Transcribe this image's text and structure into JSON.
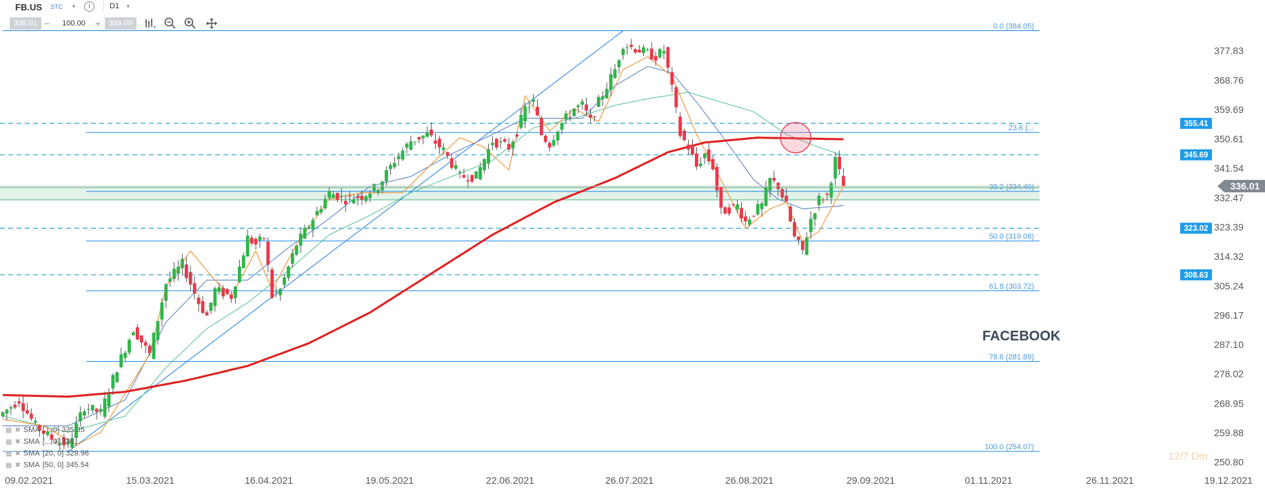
{
  "toolbar": {
    "symbol": "FB.US",
    "market": "STC",
    "timeframe": "D1",
    "bid": "336.01",
    "volume": "100.00",
    "ask": "336.09"
  },
  "chart_label": "FACEBOOK",
  "watermark": "12/7 Dm",
  "indicators": [
    {
      "label": "SMA",
      "value": "[... 0] 335.35"
    },
    {
      "label": "SMA",
      "value": "[... 0] 336..."
    },
    {
      "label": "SMA",
      "value": "[20, 0] 329.96"
    },
    {
      "label": "SMA",
      "value": "[50, 0] 345.54"
    }
  ],
  "colors": {
    "up": "#2fb54a",
    "down": "#e8394a",
    "sma_fast": "#f0a04b",
    "sma_20": "#6b8fc9",
    "sma_50": "#6ccaa0",
    "sma_200": "#e02020",
    "fib": "#1e88e5",
    "current_price": "#808890"
  },
  "chart_data": {
    "type": "candlestick",
    "symbol": "FB.US",
    "timeframe": "D1",
    "title": "",
    "xlabel": "",
    "ylabel": "",
    "ylim": [
      249,
      385
    ],
    "y_ticks": [
      "377.83",
      "368.76",
      "359.69",
      "350.61",
      "341.54",
      "332.47",
      "323.39",
      "314.32",
      "305.24",
      "296.17",
      "287.10",
      "278.02",
      "268.95",
      "259.88",
      "250.80"
    ],
    "x_ticks": [
      "09.02.2021",
      "15.03.2021",
      "16.04.2021",
      "19.05.2021",
      "22.06.2021",
      "26.07.2021",
      "26.08.2021",
      "29.09.2021",
      "01.11.2021",
      "26.11.2021",
      "19.12.2021"
    ],
    "grid": false,
    "current_price": {
      "value": 336.01,
      "label": "336.01"
    },
    "fibonacci": [
      {
        "level": "0.0",
        "price": 384.05,
        "label": "0.0 (384.05)"
      },
      {
        "level": "23.6",
        "price": 352.6,
        "label": "23.6 (..."
      },
      {
        "level": "38.2",
        "price": 334.4,
        "label": "38.2 (334.40)"
      },
      {
        "level": "50.0",
        "price": 319.08,
        "label": "50.0 (319.08)"
      },
      {
        "level": "61.8",
        "price": 303.72,
        "label": "61.8 (303.72)"
      },
      {
        "level": "78.6",
        "price": 281.89,
        "label": "78.6 (281.89)"
      },
      {
        "level": "100.0",
        "price": 254.07,
        "label": "100.0 (254.07)"
      }
    ],
    "price_levels": [
      {
        "price": 355.41,
        "label": "355.41"
      },
      {
        "price": 345.69,
        "label": "345.69"
      },
      {
        "price": 323.02,
        "label": "323.02"
      },
      {
        "price": 308.63,
        "label": "308.63"
      }
    ],
    "support_zone": [
      331.8,
      335.6
    ],
    "annotation_circle": {
      "x_index": 198,
      "price": 351
    },
    "trend_line": {
      "from": {
        "x_index": 16,
        "price": 254.0
      },
      "to": {
        "x_index": 152,
        "price": 384.0
      }
    },
    "sma_200_anchors": [
      [
        0,
        271.5
      ],
      [
        16,
        271.0
      ],
      [
        30,
        272.5
      ],
      [
        45,
        276.0
      ],
      [
        60,
        280.5
      ],
      [
        75,
        287.5
      ],
      [
        90,
        297.0
      ],
      [
        105,
        309.0
      ],
      [
        120,
        321.0
      ],
      [
        135,
        331.0
      ],
      [
        150,
        338.5
      ],
      [
        163,
        346.5
      ],
      [
        172,
        349.5
      ],
      [
        185,
        351.0
      ],
      [
        206,
        350.5
      ]
    ],
    "series_anchors": {
      "sma_fast": [
        [
          0,
          264
        ],
        [
          10,
          262
        ],
        [
          18,
          256
        ],
        [
          24,
          260
        ],
        [
          30,
          272
        ],
        [
          36,
          284
        ],
        [
          40,
          305
        ],
        [
          46,
          316
        ],
        [
          52,
          307
        ],
        [
          56,
          302
        ],
        [
          62,
          316
        ],
        [
          66,
          304
        ],
        [
          72,
          318
        ],
        [
          80,
          332
        ],
        [
          88,
          334
        ],
        [
          98,
          334
        ],
        [
          106,
          344
        ],
        [
          112,
          351
        ],
        [
          118,
          348
        ],
        [
          124,
          341
        ],
        [
          128,
          364
        ],
        [
          134,
          353
        ],
        [
          140,
          360
        ],
        [
          146,
          356
        ],
        [
          152,
          372
        ],
        [
          158,
          376
        ],
        [
          164,
          370
        ],
        [
          170,
          352
        ],
        [
          176,
          338
        ],
        [
          182,
          323
        ],
        [
          188,
          329
        ],
        [
          192,
          331
        ],
        [
          196,
          319
        ],
        [
          200,
          322
        ],
        [
          206,
          336
        ]
      ],
      "sma_20": [
        [
          0,
          262
        ],
        [
          16,
          262
        ],
        [
          30,
          270
        ],
        [
          40,
          294
        ],
        [
          50,
          307
        ],
        [
          60,
          307
        ],
        [
          70,
          317
        ],
        [
          80,
          326
        ],
        [
          90,
          336
        ],
        [
          100,
          339
        ],
        [
          110,
          346
        ],
        [
          120,
          352
        ],
        [
          128,
          357
        ],
        [
          136,
          357
        ],
        [
          142,
          357
        ],
        [
          150,
          367
        ],
        [
          158,
          373
        ],
        [
          164,
          371
        ],
        [
          170,
          362
        ],
        [
          176,
          352
        ],
        [
          184,
          338
        ],
        [
          190,
          332
        ],
        [
          196,
          329
        ],
        [
          206,
          330
        ]
      ],
      "sma_50": [
        [
          0,
          265
        ],
        [
          16,
          260
        ],
        [
          30,
          265
        ],
        [
          40,
          280
        ],
        [
          50,
          292
        ],
        [
          60,
          300
        ],
        [
          70,
          310
        ],
        [
          80,
          321
        ],
        [
          90,
          327
        ],
        [
          100,
          334
        ],
        [
          110,
          339
        ],
        [
          120,
          344
        ],
        [
          130,
          354
        ],
        [
          140,
          357
        ],
        [
          150,
          361
        ],
        [
          158,
          363
        ],
        [
          168,
          365
        ],
        [
          176,
          362
        ],
        [
          184,
          359
        ],
        [
          192,
          352
        ],
        [
          200,
          348
        ],
        [
          206,
          345.5
        ]
      ]
    },
    "candles_anchors": [
      [
        0,
        266
      ],
      [
        4,
        270
      ],
      [
        8,
        262
      ],
      [
        12,
        258
      ],
      [
        16,
        256
      ],
      [
        20,
        268
      ],
      [
        24,
        266
      ],
      [
        28,
        280
      ],
      [
        32,
        292
      ],
      [
        36,
        284
      ],
      [
        40,
        306
      ],
      [
        44,
        312
      ],
      [
        48,
        300
      ],
      [
        50,
        296
      ],
      [
        52,
        304
      ],
      [
        56,
        302
      ],
      [
        60,
        320
      ],
      [
        62,
        318
      ],
      [
        64,
        320
      ],
      [
        66,
        302
      ],
      [
        68,
        304
      ],
      [
        72,
        318
      ],
      [
        76,
        326
      ],
      [
        80,
        334
      ],
      [
        84,
        332
      ],
      [
        88,
        333
      ],
      [
        92,
        336
      ],
      [
        96,
        344
      ],
      [
        100,
        350
      ],
      [
        104,
        352
      ],
      [
        108,
        347
      ],
      [
        112,
        339
      ],
      [
        116,
        339
      ],
      [
        120,
        350
      ],
      [
        124,
        348
      ],
      [
        126,
        353
      ],
      [
        128,
        360
      ],
      [
        130,
        362
      ],
      [
        132,
        352
      ],
      [
        134,
        349
      ],
      [
        136,
        354
      ],
      [
        140,
        360
      ],
      [
        142,
        361
      ],
      [
        144,
        356
      ],
      [
        146,
        362
      ],
      [
        150,
        372
      ],
      [
        152,
        380
      ],
      [
        156,
        378
      ],
      [
        160,
        376
      ],
      [
        162,
        378
      ],
      [
        164,
        366
      ],
      [
        166,
        352
      ],
      [
        168,
        348
      ],
      [
        170,
        342
      ],
      [
        172,
        346
      ],
      [
        174,
        342
      ],
      [
        176,
        328
      ],
      [
        180,
        330
      ],
      [
        182,
        325
      ],
      [
        184,
        328
      ],
      [
        186,
        330
      ],
      [
        188,
        338
      ],
      [
        190,
        336
      ],
      [
        192,
        330
      ],
      [
        194,
        320
      ],
      [
        196,
        316
      ],
      [
        198,
        326
      ],
      [
        200,
        332
      ],
      [
        202,
        333
      ],
      [
        204,
        344
      ],
      [
        206,
        336
      ]
    ]
  }
}
